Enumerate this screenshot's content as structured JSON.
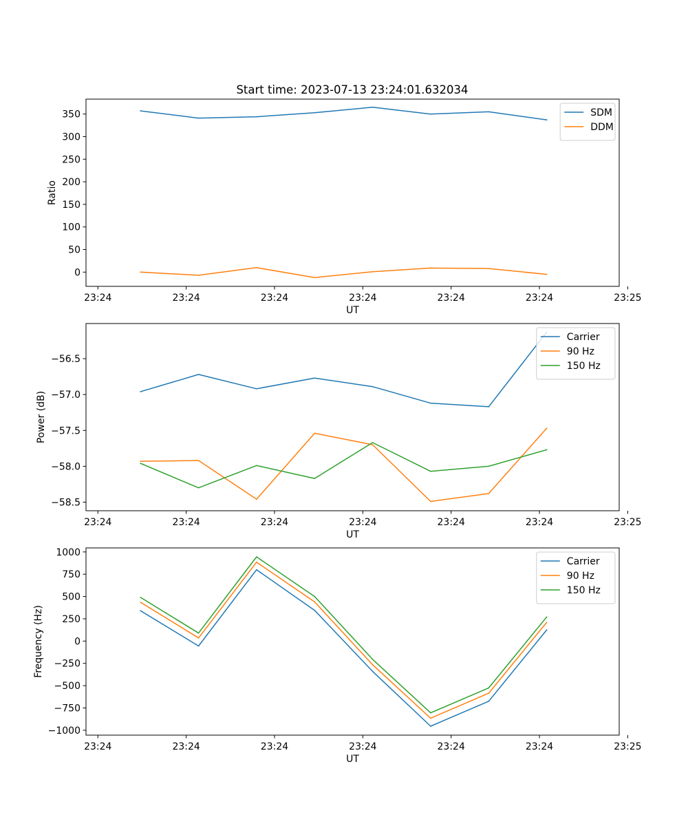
{
  "title": "Start time: 2023-07-13 23:24:01.632034",
  "colors": {
    "blue": "#1f77b4",
    "orange": "#ff7f0e",
    "green": "#2ca02c",
    "frame": "#000000"
  },
  "chart_data": [
    {
      "type": "line",
      "title": "Start time: 2023-07-13 23:24:01.632034",
      "xlabel": "UT",
      "ylabel": "Ratio",
      "x_tick_labels": [
        "23:24",
        "23:24",
        "23:24",
        "23:24",
        "23:24",
        "23:24",
        "23:25"
      ],
      "y_ticks": [
        0,
        50,
        100,
        150,
        200,
        250,
        300,
        350
      ],
      "y_tick_labels": [
        "0",
        "50",
        "100",
        "150",
        "200",
        "250",
        "300",
        "350"
      ],
      "ylim": [
        -31.5,
        383.0
      ],
      "x_index_range": [
        -0.94,
        8.25
      ],
      "x_tick_index": [
        -0.735,
        0.787,
        2.309,
        3.831,
        5.353,
        6.875,
        8.397
      ],
      "legend_position": "upper right",
      "series": [
        {
          "name": "SDM",
          "color": "#1f77b4",
          "values": [
            357,
            341,
            344,
            353,
            365,
            350,
            355,
            337
          ]
        },
        {
          "name": "DDM",
          "color": "#ff7f0e",
          "values": [
            0,
            -7,
            10,
            -12,
            1,
            9,
            8,
            -5
          ]
        }
      ]
    },
    {
      "type": "line",
      "title": "",
      "xlabel": "UT",
      "ylabel": "Power (dB)",
      "x_tick_labels": [
        "23:24",
        "23:24",
        "23:24",
        "23:24",
        "23:24",
        "23:24",
        "23:25"
      ],
      "y_ticks": [
        -58.5,
        -58.0,
        -57.5,
        -57.0,
        -56.5
      ],
      "y_tick_labels": [
        "−58.5",
        "−58.0",
        "−57.5",
        "−57.0",
        "−56.5"
      ],
      "ylim": [
        -58.62,
        -56.01
      ],
      "x_index_range": [
        -0.94,
        8.25
      ],
      "x_tick_index": [
        -0.735,
        0.787,
        2.309,
        3.831,
        5.353,
        6.875,
        8.397
      ],
      "legend_position": "upper right",
      "series": [
        {
          "name": "Carrier",
          "color": "#1f77b4",
          "values": [
            -56.96,
            -56.72,
            -56.92,
            -56.77,
            -56.89,
            -57.12,
            -57.17,
            -56.13
          ]
        },
        {
          "name": "90 Hz",
          "color": "#ff7f0e",
          "values": [
            -57.93,
            -57.92,
            -58.46,
            -57.54,
            -57.7,
            -58.49,
            -58.38,
            -57.47
          ]
        },
        {
          "name": "150 Hz",
          "color": "#2ca02c",
          "values": [
            -57.96,
            -58.3,
            -57.99,
            -58.17,
            -57.67,
            -58.07,
            -58.0,
            -57.77
          ]
        }
      ]
    },
    {
      "type": "line",
      "title": "",
      "xlabel": "UT",
      "ylabel": "Frequency (Hz)",
      "x_tick_labels": [
        "23:24",
        "23:24",
        "23:24",
        "23:24",
        "23:24",
        "23:24",
        "23:25"
      ],
      "y_ticks": [
        -1000,
        -750,
        -500,
        -250,
        0,
        250,
        500,
        750,
        1000
      ],
      "y_tick_labels": [
        "−1000",
        "−750",
        "−500",
        "−250",
        "0",
        "250",
        "500",
        "750",
        "1000"
      ],
      "ylim": [
        -1055,
        1045
      ],
      "x_index_range": [
        -0.94,
        8.25
      ],
      "x_tick_index": [
        -0.735,
        0.787,
        2.309,
        3.831,
        5.353,
        6.875,
        8.397
      ],
      "legend_position": "upper right",
      "series": [
        {
          "name": "Carrier",
          "color": "#1f77b4",
          "values": [
            340,
            -55,
            800,
            345,
            -340,
            -955,
            -675,
            125
          ]
        },
        {
          "name": "90 Hz",
          "color": "#ff7f0e",
          "values": [
            435,
            35,
            885,
            440,
            -265,
            -865,
            -585,
            210
          ]
        },
        {
          "name": "150 Hz",
          "color": "#2ca02c",
          "values": [
            490,
            90,
            945,
            500,
            -205,
            -805,
            -525,
            270
          ]
        }
      ]
    }
  ]
}
